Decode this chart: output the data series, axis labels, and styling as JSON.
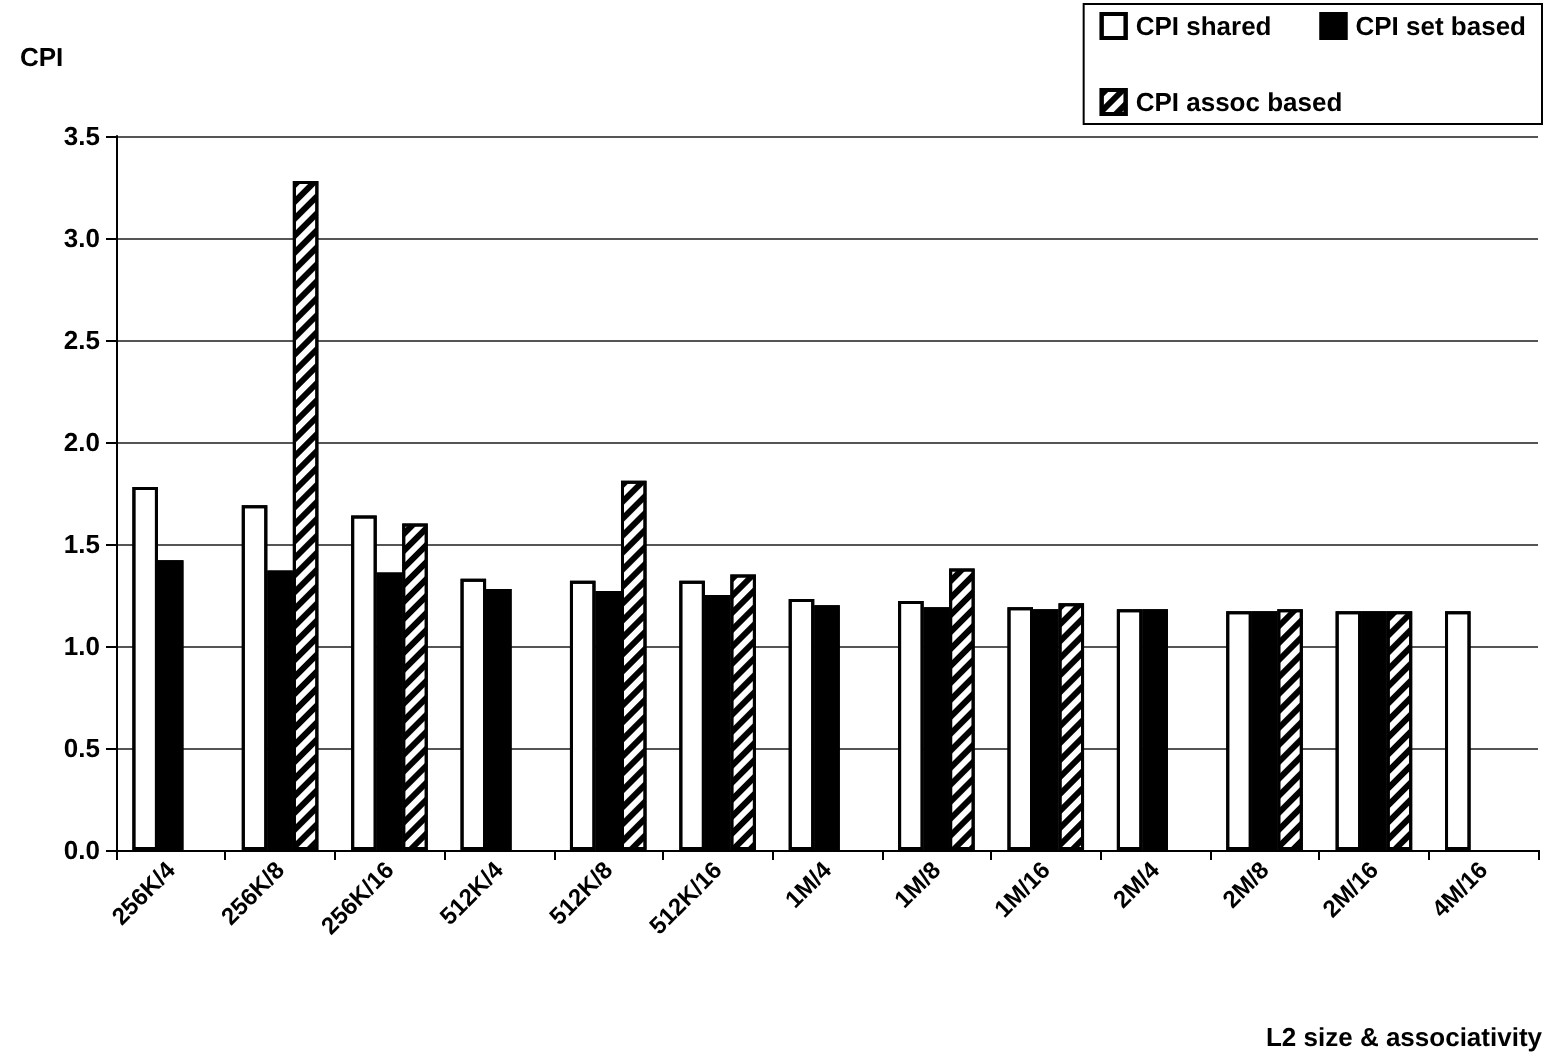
{
  "chart_data": {
    "type": "bar",
    "ylabel": "CPI",
    "xlabel": "L2 size & associativity",
    "categories": [
      "256K/4",
      "256K/8",
      "256K/16",
      "512K/4",
      "512K/8",
      "512K/16",
      "1M/4",
      "1M/8",
      "1M/16",
      "2M/4",
      "2M/8",
      "2M/16",
      "4M/16"
    ],
    "series": [
      {
        "name": "CPI shared",
        "color": "#ffffff",
        "values": [
          1.78,
          1.69,
          1.64,
          1.33,
          1.32,
          1.32,
          1.23,
          1.22,
          1.19,
          1.18,
          1.17,
          1.17,
          1.17
        ]
      },
      {
        "name": "CPI set based",
        "color": "#000000",
        "values": [
          1.42,
          1.37,
          1.36,
          1.28,
          1.27,
          1.25,
          1.2,
          1.19,
          1.18,
          1.18,
          1.17,
          1.17,
          null
        ]
      },
      {
        "name": "CPI assoc based",
        "color": "#ffffff",
        "values": [
          null,
          3.28,
          1.6,
          null,
          1.81,
          1.35,
          null,
          1.38,
          1.21,
          null,
          1.18,
          1.17,
          null
        ]
      }
    ],
    "ylim": [
      0,
      3.5
    ],
    "yticks": [
      {
        "value": 0,
        "label": "0.0"
      },
      0.5,
      {
        "value": 1,
        "label": "1.0"
      },
      1.5,
      {
        "value": 2,
        "label": "2.0"
      },
      2.5,
      {
        "value": 3,
        "label": "3.0"
      },
      3.5
    ],
    "grid": "y",
    "legend": "top right"
  }
}
